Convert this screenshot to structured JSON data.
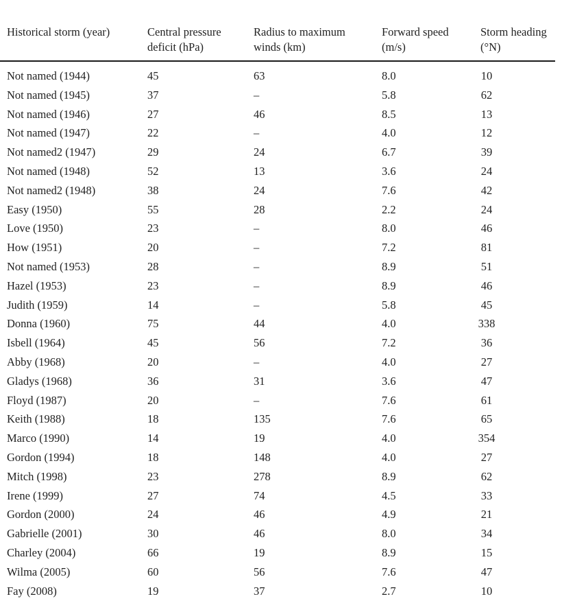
{
  "table": {
    "headers": [
      "Historical storm (year)",
      "Central pressure\ndeficit (hPa)",
      "Radius to maximum\nwinds (km)",
      "Forward speed\n(m/s)",
      "Storm heading\n(°N)"
    ],
    "rows": [
      [
        "Not named (1944)",
        "45",
        "63",
        "8.0",
        "10"
      ],
      [
        "Not named (1945)",
        "37",
        "–",
        "5.8",
        "62"
      ],
      [
        "Not named (1946)",
        "27",
        "46",
        "8.5",
        "13"
      ],
      [
        "Not named (1947)",
        "22",
        "–",
        "4.0",
        "12"
      ],
      [
        "Not named2 (1947)",
        "29",
        "24",
        "6.7",
        "39"
      ],
      [
        "Not named (1948)",
        "52",
        "13",
        "3.6",
        "24"
      ],
      [
        "Not named2 (1948)",
        "38",
        "24",
        "7.6",
        "42"
      ],
      [
        "Easy (1950)",
        "55",
        "28",
        "2.2",
        "24"
      ],
      [
        "Love (1950)",
        "23",
        "–",
        "8.0",
        "46"
      ],
      [
        "How (1951)",
        "20",
        "–",
        "7.2",
        "81"
      ],
      [
        "Not named (1953)",
        "28",
        "–",
        "8.9",
        "51"
      ],
      [
        "Hazel (1953)",
        "23",
        "–",
        "8.9",
        "46"
      ],
      [
        "Judith (1959)",
        "14",
        "–",
        "5.8",
        "45"
      ],
      [
        "Donna (1960)",
        "75",
        "44",
        "4.0",
        "338"
      ],
      [
        "Isbell (1964)",
        "45",
        "56",
        "7.2",
        "36"
      ],
      [
        "Abby (1968)",
        "20",
        "–",
        "4.0",
        "27"
      ],
      [
        "Gladys (1968)",
        "36",
        "31",
        "3.6",
        "47"
      ],
      [
        "Floyd (1987)",
        "20",
        "–",
        "7.6",
        "61"
      ],
      [
        "Keith (1988)",
        "18",
        "135",
        "7.6",
        "65"
      ],
      [
        "Marco (1990)",
        "14",
        "19",
        "4.0",
        "354"
      ],
      [
        "Gordon (1994)",
        "18",
        "148",
        "4.0",
        "27"
      ],
      [
        "Mitch (1998)",
        "23",
        "278",
        "8.9",
        "62"
      ],
      [
        "Irene (1999)",
        "27",
        "74",
        "4.5",
        "33"
      ],
      [
        "Gordon (2000)",
        "24",
        "46",
        "4.9",
        "21"
      ],
      [
        "Gabrielle (2001)",
        "30",
        "46",
        "8.0",
        "34"
      ],
      [
        "Charley (2004)",
        "66",
        "19",
        "8.9",
        "15"
      ],
      [
        "Wilma (2005)",
        "60",
        "56",
        "7.6",
        "47"
      ],
      [
        "Fay (2008)",
        "19",
        "37",
        "2.7",
        "10"
      ]
    ]
  }
}
